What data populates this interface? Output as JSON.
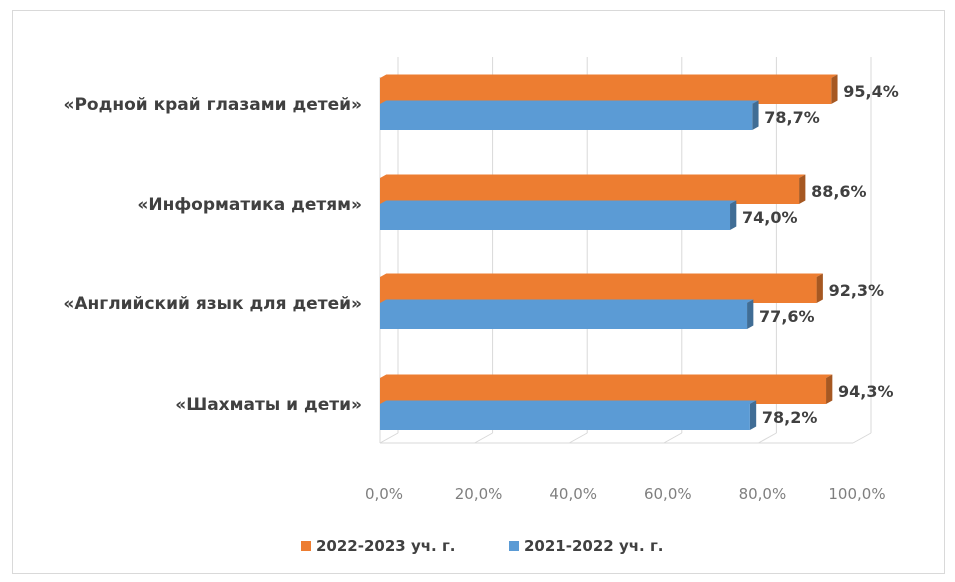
{
  "chart_data": {
    "type": "bar",
    "orientation": "horizontal",
    "three_d": true,
    "categories": [
      "«Родной край глазами детей»",
      "«Информатика детям»",
      "«Английский язык для детей»",
      "«Шахматы и дети»"
    ],
    "series": [
      {
        "name": "2022-2023 уч. г.",
        "color": "#ed7d31",
        "values": [
          95.4,
          88.6,
          92.3,
          94.3
        ],
        "labels": [
          "95,4%",
          "88,6%",
          "92,3%",
          "94,3%"
        ]
      },
      {
        "name": "2021-2022 уч. г.",
        "color": "#5b9bd5",
        "values": [
          78.7,
          74.0,
          77.6,
          78.2
        ],
        "labels": [
          "78,7%",
          "74,0%",
          "77,6%",
          "78,2%"
        ]
      }
    ],
    "xlim": [
      0,
      100
    ],
    "x_ticks": [
      0,
      20,
      40,
      60,
      80,
      100
    ],
    "x_tick_labels": [
      "0,0%",
      "20,0%",
      "40,0%",
      "60,0%",
      "80,0%",
      "100,0%"
    ],
    "grid": true,
    "legend": "bottom",
    "title": "",
    "xlabel": "",
    "ylabel": ""
  }
}
